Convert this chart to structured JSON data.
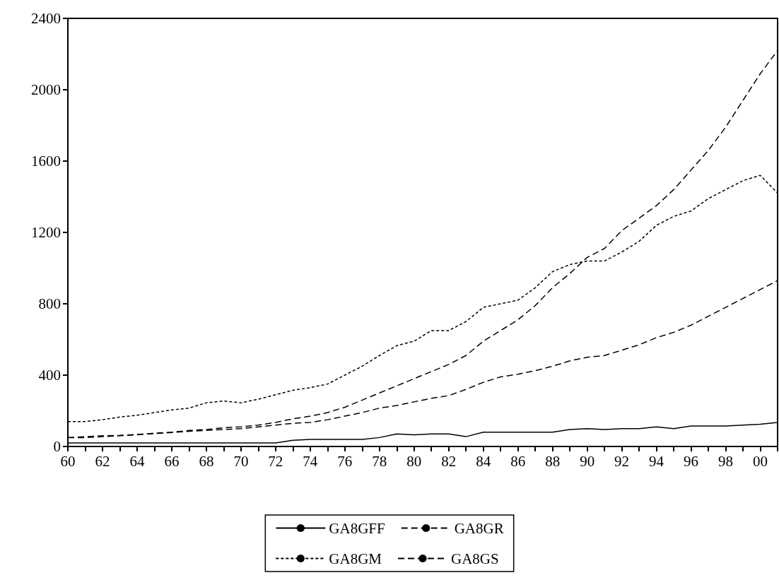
{
  "chart_data": {
    "type": "line",
    "x": [
      1960,
      1961,
      1962,
      1963,
      1964,
      1965,
      1966,
      1967,
      1968,
      1969,
      1970,
      1971,
      1972,
      1973,
      1974,
      1975,
      1976,
      1977,
      1978,
      1979,
      1980,
      1981,
      1982,
      1983,
      1984,
      1985,
      1986,
      1987,
      1988,
      1989,
      1990,
      1991,
      1992,
      1993,
      1994,
      1995,
      1996,
      1997,
      1998,
      1999,
      2000,
      2001
    ],
    "series": [
      {
        "name": "GA8GFF",
        "color": "#000000",
        "line_style": "solid",
        "values": [
          20,
          20,
          20,
          20,
          20,
          20,
          20,
          20,
          20,
          20,
          20,
          20,
          20,
          35,
          40,
          40,
          40,
          40,
          50,
          70,
          65,
          70,
          70,
          55,
          80,
          80,
          80,
          80,
          80,
          95,
          100,
          95,
          100,
          100,
          110,
          100,
          115,
          115,
          115,
          120,
          125,
          135
        ]
      },
      {
        "name": "GA8GR",
        "color": "#000000",
        "line_style": "dashed",
        "values": [
          50,
          55,
          60,
          62,
          68,
          72,
          78,
          85,
          90,
          95,
          100,
          110,
          120,
          130,
          135,
          150,
          170,
          190,
          215,
          230,
          250,
          270,
          285,
          320,
          360,
          390,
          405,
          425,
          450,
          480,
          500,
          510,
          540,
          570,
          610,
          640,
          680,
          730,
          780,
          830,
          880,
          930
        ]
      },
      {
        "name": "GA8GM",
        "color": "#000000",
        "line_style": "dotted",
        "values": [
          140,
          140,
          150,
          165,
          175,
          190,
          205,
          215,
          245,
          255,
          245,
          265,
          290,
          315,
          330,
          350,
          400,
          450,
          510,
          565,
          590,
          650,
          650,
          700,
          780,
          800,
          820,
          890,
          980,
          1020,
          1040,
          1040,
          1090,
          1150,
          1240,
          1290,
          1320,
          1390,
          1440,
          1490,
          1520,
          1420
        ]
      },
      {
        "name": "GA8GS",
        "color": "#000000",
        "line_style": "dashed",
        "values": [
          50,
          50,
          55,
          60,
          65,
          75,
          80,
          90,
          95,
          105,
          110,
          120,
          135,
          155,
          170,
          190,
          220,
          260,
          300,
          340,
          380,
          420,
          460,
          510,
          590,
          650,
          710,
          790,
          890,
          970,
          1060,
          1110,
          1210,
          1280,
          1350,
          1440,
          1550,
          1660,
          1790,
          1940,
          2090,
          2220
        ]
      }
    ],
    "xlim": [
      1960,
      2001
    ],
    "xticks": [
      {
        "value": 1960,
        "label": "60"
      },
      {
        "value": 1961,
        "label": null
      },
      {
        "value": 1962,
        "label": "62"
      },
      {
        "value": 1963,
        "label": null
      },
      {
        "value": 1964,
        "label": "64"
      },
      {
        "value": 1965,
        "label": null
      },
      {
        "value": 1966,
        "label": "66"
      },
      {
        "value": 1967,
        "label": null
      },
      {
        "value": 1968,
        "label": "68"
      },
      {
        "value": 1969,
        "label": null
      },
      {
        "value": 1970,
        "label": "70"
      },
      {
        "value": 1971,
        "label": null
      },
      {
        "value": 1972,
        "label": "72"
      },
      {
        "value": 1973,
        "label": null
      },
      {
        "value": 1974,
        "label": "74"
      },
      {
        "value": 1975,
        "label": null
      },
      {
        "value": 1976,
        "label": "76"
      },
      {
        "value": 1977,
        "label": null
      },
      {
        "value": 1978,
        "label": "78"
      },
      {
        "value": 1979,
        "label": null
      },
      {
        "value": 1980,
        "label": "80"
      },
      {
        "value": 1981,
        "label": null
      },
      {
        "value": 1982,
        "label": "82"
      },
      {
        "value": 1983,
        "label": null
      },
      {
        "value": 1984,
        "label": "84"
      },
      {
        "value": 1985,
        "label": null
      },
      {
        "value": 1986,
        "label": "86"
      },
      {
        "value": 1987,
        "label": null
      },
      {
        "value": 1988,
        "label": "88"
      },
      {
        "value": 1989,
        "label": null
      },
      {
        "value": 1990,
        "label": "90"
      },
      {
        "value": 1991,
        "label": null
      },
      {
        "value": 1992,
        "label": "92"
      },
      {
        "value": 1993,
        "label": null
      },
      {
        "value": 1994,
        "label": "94"
      },
      {
        "value": 1995,
        "label": null
      },
      {
        "value": 1996,
        "label": "96"
      },
      {
        "value": 1997,
        "label": null
      },
      {
        "value": 1998,
        "label": "98"
      },
      {
        "value": 1999,
        "label": null
      },
      {
        "value": 2000,
        "label": "00"
      },
      {
        "value": 2001,
        "label": null
      }
    ],
    "ylim": [
      0,
      2400
    ],
    "yticks": [
      0,
      400,
      800,
      1200,
      1600,
      2000,
      2400
    ],
    "grid": false,
    "legend": "bottom",
    "marker": "none"
  }
}
